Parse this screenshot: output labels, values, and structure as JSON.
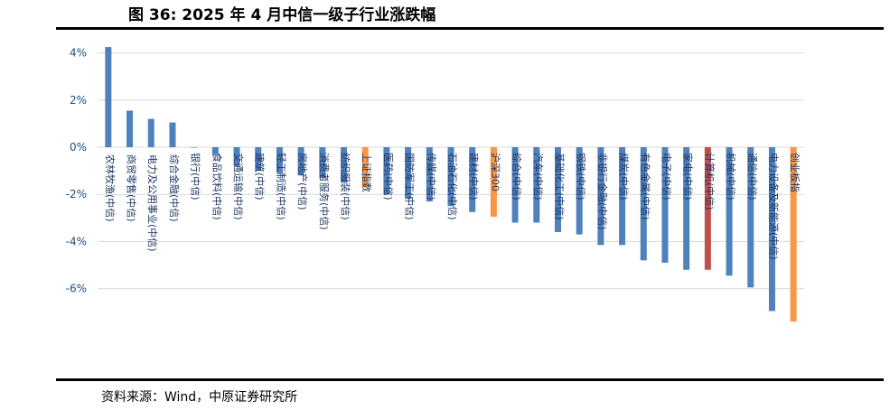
{
  "title": "图 36:  2025 年 4 月中信一级子行业涨跌幅",
  "source": "资料来源：Wind，中原证券研究所",
  "colors": {
    "bar": "#4f81bd",
    "highlight_index": "#f79646",
    "highlight_sector": "#c0504d",
    "grid": "#d9d9d9",
    "axis_text": "#1f4e79",
    "label_text": "#1f3864"
  },
  "chart_data": {
    "type": "bar",
    "ylim": [
      -8,
      4.6
    ],
    "yticks": [
      4,
      2,
      0,
      -2,
      -4,
      -6
    ],
    "ytick_labels": [
      "4%",
      "2%",
      "0%",
      "-2%",
      "-4%",
      "-6%"
    ],
    "grid": true,
    "categories": [
      "农林牧渔(中信)",
      "商贸零售(中信)",
      "电力及公用事业(中信)",
      "综合金融(中信)",
      "银行(中信)",
      "食品饮料(中信)",
      "交通运输(中信)",
      "建筑(中信)",
      "轻工制造(中信)",
      "房地产(中信)",
      "消费者服务(中信)",
      "纺织服装(中信)",
      "上证指数",
      "医药(中信)",
      "国防军工(中信)",
      "传媒(中信)",
      "石油石化(中信)",
      "建材(中信)",
      "沪深300",
      "综合(中信)",
      "汽车(中信)",
      "基础化工(中信)",
      "钢铁(中信)",
      "非银行金融(中信)",
      "煤炭(中信)",
      "有色金属(中信)",
      "电子(中信)",
      "家电(中信)",
      "计算机(中信)",
      "机械(中信)",
      "通信(中信)",
      "电力设备及新能源(中信)",
      "创业板指"
    ],
    "values": [
      4.25,
      1.55,
      1.2,
      1.05,
      0.0,
      -0.3,
      -0.8,
      -1.0,
      -1.1,
      -1.2,
      -1.3,
      -1.5,
      -1.7,
      -2.0,
      -2.2,
      -2.3,
      -2.5,
      -2.75,
      -2.95,
      -3.2,
      -3.2,
      -3.6,
      -3.7,
      -4.15,
      -4.15,
      -4.8,
      -4.9,
      -5.2,
      -5.2,
      -5.45,
      -5.95,
      -6.95,
      -7.4
    ],
    "bar_types": [
      "sector",
      "sector",
      "sector",
      "sector",
      "sector",
      "sector",
      "sector",
      "sector",
      "sector",
      "sector",
      "sector",
      "sector",
      "index",
      "sector",
      "sector",
      "sector",
      "sector",
      "sector",
      "index",
      "sector",
      "sector",
      "sector",
      "sector",
      "sector",
      "sector",
      "sector",
      "sector",
      "sector",
      "highlight",
      "sector",
      "sector",
      "sector",
      "index"
    ]
  }
}
